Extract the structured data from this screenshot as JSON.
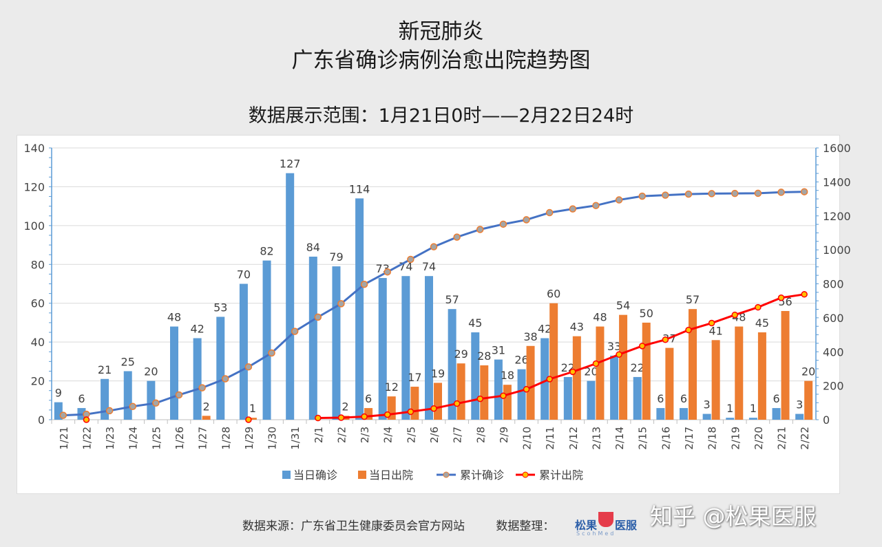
{
  "header": {
    "title_line1": "新冠肺炎",
    "title_line2": "广东省确诊病例治愈出院趋势图",
    "subtitle": "数据展示范围：1月21日0时——2月22日24时"
  },
  "footer": {
    "source": "数据来源：广东省卫生健康委员会官方网站",
    "organizer": "数据整理：",
    "logo_text_left": "松果",
    "logo_text_right": "医服",
    "logo_sub": "ScohMed"
  },
  "watermark": "知乎 @松果医服",
  "chart_data": {
    "type": "bar+line",
    "categories": [
      "1/21",
      "1/22",
      "1/23",
      "1/24",
      "1/25",
      "1/26",
      "1/27",
      "1/28",
      "1/29",
      "1/30",
      "1/31",
      "2/1",
      "2/2",
      "2/3",
      "2/4",
      "2/5",
      "2/6",
      "2/7",
      "2/8",
      "2/9",
      "2/10",
      "2/11",
      "2/12",
      "2/13",
      "2/14",
      "2/15",
      "2/16",
      "2/17",
      "2/18",
      "2/19",
      "2/20",
      "2/21",
      "2/22"
    ],
    "left_axis": {
      "ylim": [
        0,
        140
      ],
      "ticks": [
        0,
        20,
        40,
        60,
        80,
        100,
        120,
        140
      ]
    },
    "right_axis": {
      "ylim": [
        0,
        1600
      ],
      "ticks": [
        0,
        200,
        400,
        600,
        800,
        1000,
        1200,
        1400,
        1600
      ]
    },
    "grid": true,
    "legend_position": "bottom",
    "series": [
      {
        "name": "当日确诊",
        "type": "bar",
        "axis": "left",
        "color": "#5b9bd5",
        "values": [
          9,
          6,
          21,
          25,
          20,
          48,
          42,
          53,
          70,
          82,
          127,
          84,
          79,
          114,
          73,
          74,
          74,
          57,
          45,
          31,
          26,
          42,
          22,
          20,
          33,
          22,
          6,
          6,
          3,
          1,
          1,
          6,
          3
        ]
      },
      {
        "name": "当日出院",
        "type": "bar",
        "axis": "left",
        "color": "#ed7d31",
        "values": [
          null,
          null,
          null,
          null,
          null,
          null,
          2,
          null,
          1,
          null,
          null,
          null,
          2,
          6,
          12,
          17,
          19,
          29,
          28,
          18,
          38,
          60,
          43,
          48,
          54,
          50,
          37,
          57,
          41,
          48,
          45,
          56,
          20
        ]
      },
      {
        "name": "累计确诊",
        "type": "line",
        "axis": "right",
        "color": "#4472c4",
        "values": [
          26,
          32,
          53,
          78,
          98,
          146,
          188,
          241,
          311,
          393,
          520,
          604,
          683,
          797,
          870,
          944,
          1018,
          1075,
          1120,
          1151,
          1177,
          1219,
          1241,
          1261,
          1294,
          1316,
          1322,
          1328,
          1331,
          1332,
          1333,
          1339,
          1342
        ]
      },
      {
        "name": "累计出院",
        "type": "line",
        "axis": "right",
        "color": "#ff0000",
        "values": [
          null,
          0,
          null,
          null,
          null,
          null,
          null,
          null,
          0,
          null,
          null,
          10,
          12,
          18,
          30,
          47,
          66,
          95,
          123,
          141,
          179,
          239,
          282,
          330,
          384,
          434,
          471,
          528,
          569,
          617,
          662,
          718,
          738
        ]
      }
    ]
  }
}
